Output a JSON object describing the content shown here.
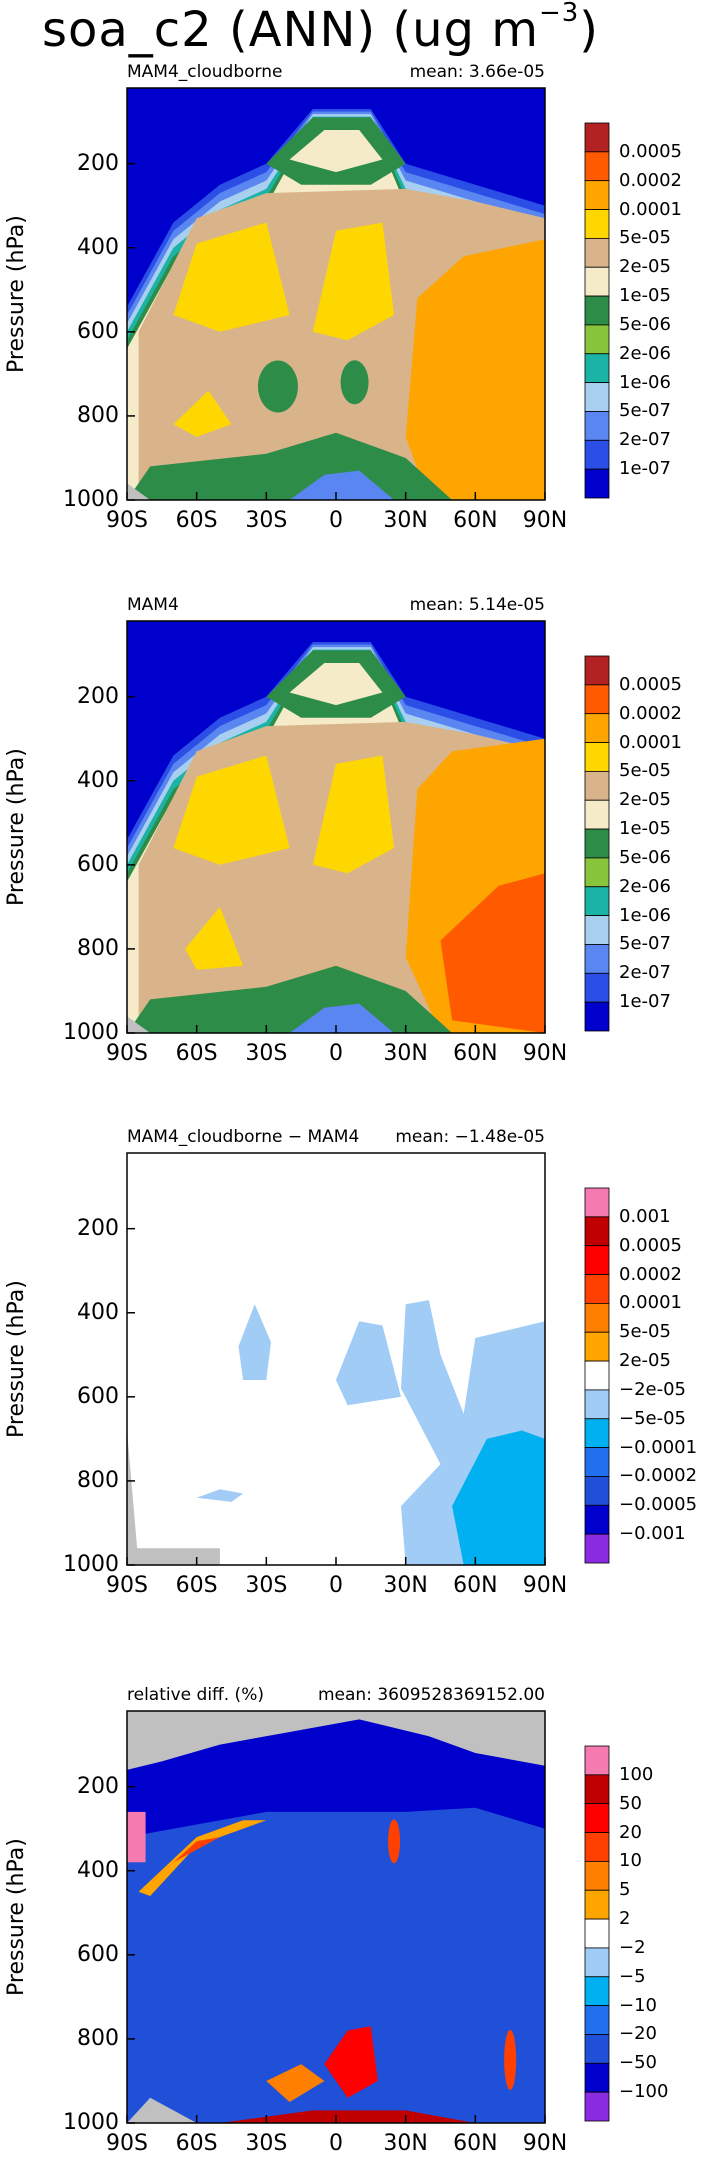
{
  "title": {
    "main": "soa_c2 (ANN) (ug m",
    "exp": "−3",
    "close": ")"
  },
  "colors": {
    "levels": [
      "#0000cc",
      "#2b4fe6",
      "#5a86f2",
      "#a8cfef",
      "#1ab3a6",
      "#88c43c",
      "#2e8c49",
      "#f5ebc8",
      "#d9b48a",
      "#ffd700",
      "#ffa500",
      "#ff5a00",
      "#b22222"
    ],
    "diff": [
      "#8a2be2",
      "#0000cc",
      "#2050d8",
      "#2070f0",
      "#00b0f0",
      "#a0ccf5",
      "#ffffff",
      "#ffa500",
      "#ff7f00",
      "#ff4000",
      "#ff0000",
      "#c00000",
      "#f47ab0"
    ],
    "missing": "#c0c0c0"
  },
  "chart_data": [
    {
      "type": "heatmap",
      "left_label": "MAM4_cloudborne",
      "right_label": "mean: 3.66e-05",
      "ylabel": "Pressure (hPa)",
      "ylim": [
        1000,
        20
      ],
      "xlim": [
        -90,
        90
      ],
      "ticks_y": [
        "200",
        "400",
        "600",
        "800",
        "1000"
      ],
      "ticks_x": [
        "90S",
        "60S",
        "30S",
        "0",
        "30N",
        "60N",
        "90N"
      ],
      "legend_labels": [
        "0.0005",
        "0.0002",
        "0.0001",
        "5e-05",
        "2e-05",
        "1e-05",
        "5e-06",
        "2e-06",
        "1e-06",
        "5e-07",
        "2e-07",
        "1e-07"
      ]
    },
    {
      "type": "heatmap",
      "left_label": "MAM4",
      "right_label": "mean: 5.14e-05",
      "ylabel": "Pressure (hPa)",
      "ylim": [
        1000,
        20
      ],
      "xlim": [
        -90,
        90
      ],
      "ticks_y": [
        "200",
        "400",
        "600",
        "800",
        "1000"
      ],
      "ticks_x": [
        "90S",
        "60S",
        "30S",
        "0",
        "30N",
        "60N",
        "90N"
      ],
      "legend_labels": [
        "0.0005",
        "0.0002",
        "0.0001",
        "5e-05",
        "2e-05",
        "1e-05",
        "5e-06",
        "2e-06",
        "1e-06",
        "5e-07",
        "2e-07",
        "1e-07"
      ]
    },
    {
      "type": "heatmap",
      "left_label": "MAM4_cloudborne − MAM4",
      "right_label": "mean: −1.48e-05",
      "ylabel": "Pressure (hPa)",
      "ylim": [
        1000,
        20
      ],
      "xlim": [
        -90,
        90
      ],
      "ticks_y": [
        "200",
        "400",
        "600",
        "800",
        "1000"
      ],
      "ticks_x": [
        "90S",
        "60S",
        "30S",
        "0",
        "30N",
        "60N",
        "90N"
      ],
      "legend_labels": [
        "0.001",
        "0.0005",
        "0.0002",
        "0.0001",
        "5e-05",
        "2e-05",
        "−2e-05",
        "−5e-05",
        "−0.0001",
        "−0.0002",
        "−0.0005",
        "−0.001"
      ]
    },
    {
      "type": "heatmap",
      "left_label": "relative diff. (%)",
      "right_label": "mean: 3609528369152.00",
      "ylabel": "Pressure (hPa)",
      "ylim": [
        1000,
        20
      ],
      "xlim": [
        -90,
        90
      ],
      "ticks_y": [
        "200",
        "400",
        "600",
        "800",
        "1000"
      ],
      "ticks_x": [
        "90S",
        "60S",
        "30S",
        "0",
        "30N",
        "60N",
        "90N"
      ],
      "legend_labels": [
        "100",
        "50",
        "20",
        "10",
        "5",
        "2",
        "−2",
        "−5",
        "−10",
        "−20",
        "−50",
        "−100"
      ]
    }
  ]
}
